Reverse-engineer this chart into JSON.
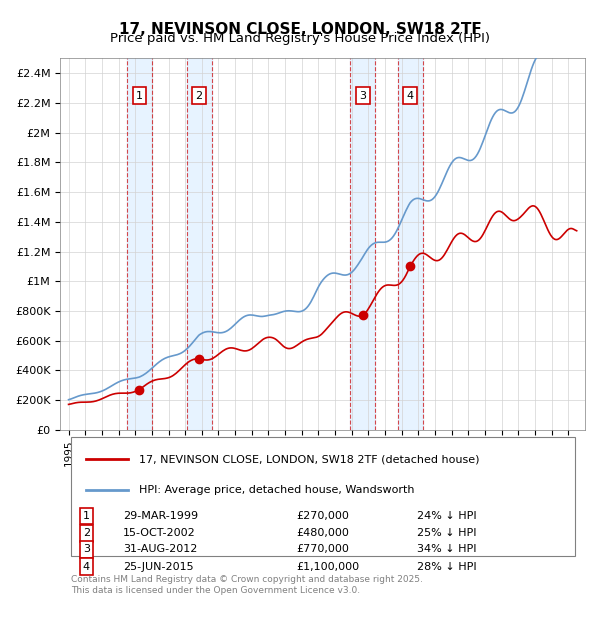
{
  "title": "17, NEVINSON CLOSE, LONDON, SW18 2TF",
  "subtitle": "Price paid vs. HM Land Registry's House Price Index (HPI)",
  "transactions": [
    {
      "num": 1,
      "date": "1999-03-29",
      "price": 270000,
      "hpi_diff": "24% ↓ HPI"
    },
    {
      "num": 2,
      "date": "2002-10-15",
      "price": 480000,
      "hpi_diff": "25% ↓ HPI"
    },
    {
      "num": 3,
      "date": "2012-08-31",
      "price": 770000,
      "hpi_diff": "34% ↓ HPI"
    },
    {
      "num": 4,
      "date": "2015-06-25",
      "price": 1100000,
      "hpi_diff": "28% ↓ HPI"
    }
  ],
  "transaction_dates_fmt": [
    "29-MAR-1999",
    "15-OCT-2002",
    "31-AUG-2012",
    "25-JUN-2015"
  ],
  "transaction_prices_fmt": [
    "£270,000",
    "£480,000",
    "£770,000",
    "£1,100,000"
  ],
  "red_line_color": "#cc0000",
  "blue_line_color": "#6699cc",
  "shade_color": "#ddeeff",
  "marker_border_color": "#cc0000",
  "ylabel_values": [
    0,
    200000,
    400000,
    600000,
    800000,
    1000000,
    1200000,
    1400000,
    1600000,
    1800000,
    2000000,
    2200000,
    2400000
  ],
  "ylabel_labels": [
    "£0",
    "£200K",
    "£400K",
    "£600K",
    "£800K",
    "£1M",
    "£1.2M",
    "£1.4M",
    "£1.6M",
    "£1.8M",
    "£2M",
    "£2.2M",
    "£2.4M"
  ],
  "footer": "Contains HM Land Registry data © Crown copyright and database right 2025.\nThis data is licensed under the Open Government Licence v3.0.",
  "legend_red": "17, NEVINSON CLOSE, LONDON, SW18 2TF (detached house)",
  "legend_blue": "HPI: Average price, detached house, Wandsworth"
}
